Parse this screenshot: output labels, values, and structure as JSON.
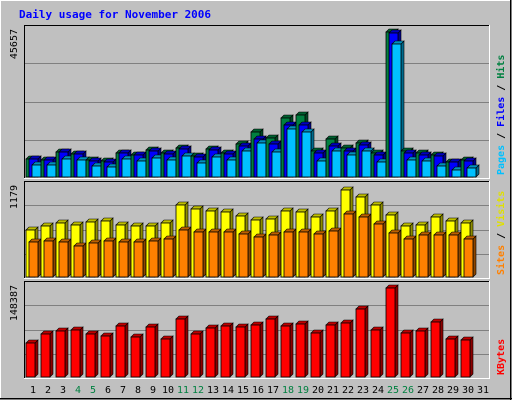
{
  "chart_data": {
    "type": "bar",
    "title": "Daily usage for November 2006",
    "categories": [
      "1",
      "2",
      "3",
      "4",
      "5",
      "6",
      "7",
      "8",
      "9",
      "10",
      "11",
      "12",
      "13",
      "14",
      "15",
      "16",
      "17",
      "18",
      "19",
      "20",
      "21",
      "22",
      "23",
      "24",
      "25",
      "26",
      "27",
      "28",
      "29",
      "30",
      "31"
    ],
    "weekend_days": [
      "4",
      "5",
      "11",
      "12",
      "18",
      "19",
      "25",
      "26"
    ],
    "panels": [
      {
        "id": "hits-files-pages",
        "max_label": "45657",
        "ymax": 45657,
        "side_labels": [
          {
            "text": "Hits",
            "color": "#008040"
          },
          {
            "text": "Files",
            "color": "#0000ff"
          },
          {
            "text": "Pages",
            "color": "#00c0ff"
          }
        ],
        "separator": " / ",
        "series": [
          {
            "name": "Hits",
            "color": "#008040",
            "values": [
              5800,
              5500,
              8000,
              7300,
              5400,
              4900,
              7700,
              7000,
              8500,
              7600,
              9000,
              6500,
              8800,
              7400,
              10500,
              14200,
              12400,
              18700,
              19400,
              8300,
              12000,
              9100,
              10800,
              7500,
              45600,
              8100,
              7400,
              6900,
              4800,
              5200,
              0
            ]
          },
          {
            "name": "Files",
            "color": "#0000ff",
            "values": [
              5600,
              5300,
              7900,
              7100,
              5100,
              4700,
              7400,
              6900,
              8300,
              7300,
              8800,
              6300,
              8500,
              7100,
              9900,
              11900,
              10500,
              16500,
              16500,
              7500,
              9800,
              8300,
              10000,
              6900,
              45200,
              7700,
              6900,
              6600,
              4600,
              4900,
              0
            ]
          },
          {
            "name": "Pages",
            "color": "#00c0ff",
            "values": [
              3900,
              3900,
              5800,
              5300,
              3600,
              3300,
              5700,
              5000,
              6000,
              5300,
              6700,
              4400,
              6400,
              5300,
              8300,
              10800,
              7900,
              15100,
              14300,
              5100,
              8100,
              6800,
              8300,
              4600,
              42000,
              5300,
              4900,
              3600,
              2300,
              2800,
              0
            ]
          }
        ]
      },
      {
        "id": "visits-sites",
        "max_label": "1179",
        "ymax": 1179,
        "side_labels": [
          {
            "text": "Visits",
            "color": "#e0e000"
          },
          {
            "text": "Sites",
            "color": "#ff8000"
          }
        ],
        "separator": " / ",
        "series": [
          {
            "name": "Visits",
            "color": "#ffff00",
            "values": [
              620,
              680,
              720,
              690,
              730,
              740,
              690,
              680,
              680,
              710,
              950,
              900,
              880,
              860,
              810,
              760,
              770,
              880,
              860,
              800,
              880,
              1150,
              1060,
              950,
              820,
              670,
              690,
              790,
              740,
              710,
              0
            ]
          },
          {
            "name": "Sites",
            "color": "#ff8000",
            "values": [
              470,
              480,
              470,
              410,
              450,
              480,
              460,
              470,
              480,
              500,
              620,
              600,
              600,
              600,
              570,
              530,
              550,
              590,
              590,
              570,
              610,
              830,
              800,
              700,
              580,
              510,
              550,
              560,
              560,
              500,
              0
            ]
          }
        ]
      },
      {
        "id": "kbytes",
        "max_label": "148387",
        "ymax": 148387,
        "side_labels": [
          {
            "text": "KBytes",
            "color": "#ff0000"
          }
        ],
        "separator": "",
        "series": [
          {
            "name": "KBytes",
            "color": "#ff0000",
            "values": [
              56000,
              72000,
              76000,
              78000,
              72000,
              69000,
              85000,
              67000,
              84000,
              63000,
              96000,
              72000,
              82000,
              85000,
              83000,
              86000,
              96000,
              85000,
              88000,
              74000,
              87000,
              90000,
              113000,
              78000,
              148000,
              74000,
              77000,
              91000,
              64000,
              61000,
              0
            ]
          }
        ]
      }
    ]
  }
}
